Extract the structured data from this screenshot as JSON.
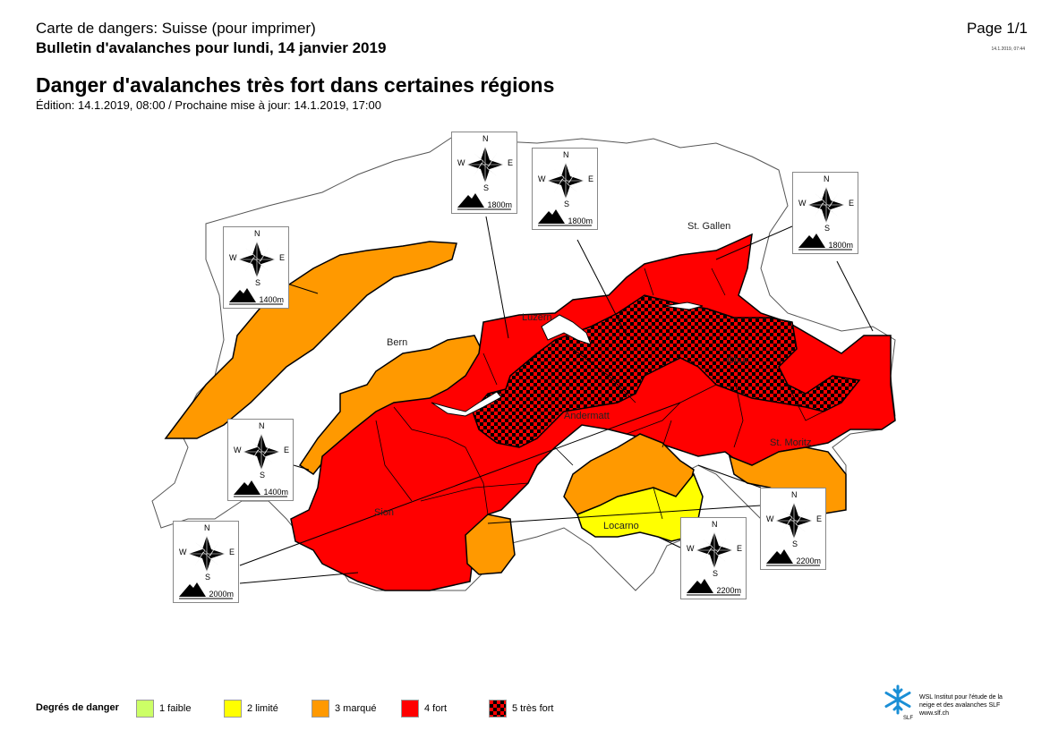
{
  "header": {
    "doc_type": "Carte de dangers: Suisse (pour imprimer)",
    "bulletin_title": "Bulletin d'avalanches pour lundi, 14 janvier 2019",
    "page": "Page 1/1",
    "timestamp": "14.1.2019, 07:44",
    "main_title": "Danger d'avalanches très fort dans certaines régions",
    "edition": "Édition: 14.1.2019, 08:00 / Prochaine mise à jour: 14.1.2019, 17:00"
  },
  "colors": {
    "level_1": "#ccff66",
    "level_2": "#ffff00",
    "level_3": "#ff9900",
    "level_4": "#ff0000",
    "level_5": "#ff0000",
    "level_5_pattern": "#000000",
    "border": "#000000"
  },
  "map": {
    "cities": [
      "Bern",
      "Luzern",
      "St. Gallen",
      "Chur",
      "Andermatt",
      "St. Moritz",
      "Sion",
      "Locarno"
    ],
    "roses": [
      {
        "N": "N",
        "S": "S",
        "W": "W",
        "E": "E",
        "elevation": "1800m"
      },
      {
        "N": "N",
        "S": "S",
        "W": "W",
        "E": "E",
        "elevation": "1800m"
      },
      {
        "N": "N",
        "S": "S",
        "W": "W",
        "E": "E",
        "elevation": "1800m"
      },
      {
        "N": "N",
        "S": "S",
        "W": "W",
        "E": "E",
        "elevation": "1400m"
      },
      {
        "N": "N",
        "S": "S",
        "W": "W",
        "E": "E",
        "elevation": "1400m"
      },
      {
        "N": "N",
        "S": "S",
        "W": "W",
        "E": "E",
        "elevation": "2000m"
      },
      {
        "N": "N",
        "S": "S",
        "W": "W",
        "E": "E",
        "elevation": "2200m"
      },
      {
        "N": "N",
        "S": "S",
        "W": "W",
        "E": "E",
        "elevation": "2200m"
      }
    ]
  },
  "legend": {
    "title": "Degrés de danger",
    "items": [
      {
        "label": "1 faible",
        "color": "#ccff66"
      },
      {
        "label": "2 limité",
        "color": "#ffff00"
      },
      {
        "label": "3 marqué",
        "color": "#ff9900"
      },
      {
        "label": "4 fort",
        "color": "#ff0000"
      },
      {
        "label": "5 très fort",
        "color": "checker"
      }
    ]
  },
  "footer": {
    "institute_line1": "WSL Institut pour l'étude de la",
    "institute_line2": "neige et des avalanches SLF",
    "institute_url": "www.slf.ch",
    "logo_text": "SLF"
  }
}
